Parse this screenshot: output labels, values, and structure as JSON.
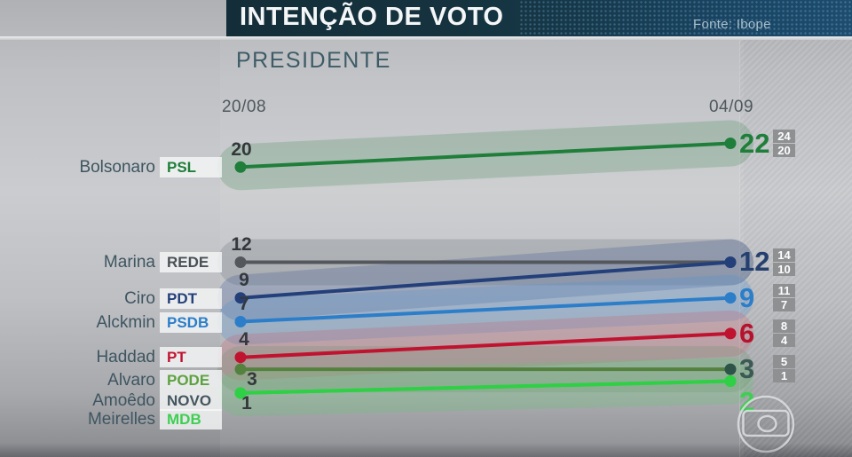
{
  "header": {
    "title": "INTENÇÃO DE VOTO",
    "source": "Fonte: Ibope"
  },
  "chart_data": {
    "type": "line",
    "variant": "slope",
    "title": "PRESIDENTE",
    "x": [
      "20/08",
      "04/09"
    ],
    "grid": false,
    "legend_position": "left-inline",
    "note": "shaded bands show margin of error; small gray badges show upper/lower bounds on 04/09",
    "series": [
      {
        "name": "Bolsonaro",
        "party": "PSL",
        "party_color": "#1f7e3a",
        "color": "#1f7e3a",
        "values": [
          20,
          22
        ],
        "moe_range": [
          20,
          24
        ],
        "band": "rgba(72,140,88,0.25)"
      },
      {
        "name": "Marina",
        "party": "REDE",
        "party_color": "#4b5055",
        "color": "#54585d",
        "values": [
          12,
          12
        ],
        "moe_range": [
          10,
          14
        ],
        "band": "rgba(105,110,116,0.25)"
      },
      {
        "name": "Ciro",
        "party": "PDT",
        "party_color": "#24407a",
        "color": "#24407a",
        "values": [
          9,
          12
        ],
        "moe_range": [
          10,
          14
        ],
        "band": "rgba(70,95,150,0.28)"
      },
      {
        "name": "Alckmin",
        "party": "PSDB",
        "party_color": "#2c7ec9",
        "color": "#2c7ec9",
        "values": [
          7,
          9
        ],
        "moe_range": [
          7,
          11
        ],
        "band": "rgba(90,145,205,0.30)"
      },
      {
        "name": "Haddad",
        "party": "PT",
        "party_color": "#c11431",
        "color": "#c01330",
        "values": [
          4,
          6
        ],
        "moe_range": [
          4,
          8
        ],
        "band": "rgba(205,90,105,0.25)"
      },
      {
        "name": "Alvaro",
        "party": "PODE",
        "party_color": "#5da23f",
        "color": "#55813f",
        "dot_right": "#2e5349",
        "values": [
          3,
          3
        ],
        "moe_range": [
          1,
          5
        ],
        "band": "rgba(120,145,115,0.28)"
      },
      {
        "name": "Amoêdo",
        "party": "NOVO",
        "party_color": "#44565e",
        "color": "#2fd045",
        "values": [
          1,
          2
        ],
        "band": "rgba(95,200,110,0.25)"
      },
      {
        "name": "Meirelles",
        "party": "MDB",
        "party_color": "#3ecf52",
        "color": "#2fd045",
        "values": [
          1,
          2
        ]
      }
    ],
    "left_labels": [
      {
        "text": "20"
      },
      {
        "text": "12"
      },
      {
        "text": "9"
      },
      {
        "text": "7"
      },
      {
        "text": "4"
      },
      {
        "text": "3"
      },
      {
        "text": "1"
      }
    ],
    "right_labels": [
      {
        "text": "22",
        "color": "#1f7e3a",
        "badges": [
          "24",
          "20"
        ]
      },
      {
        "text": "12",
        "color": "#25406e",
        "badges": [
          "14",
          "10"
        ]
      },
      {
        "text": "9",
        "color": "#2c7ec9",
        "badges": [
          "11",
          "7"
        ]
      },
      {
        "text": "6",
        "color": "#b5122e",
        "badges": [
          "8",
          "4"
        ]
      },
      {
        "text": "3",
        "color": "#3b5a54",
        "badges": [
          "5",
          "1"
        ]
      },
      {
        "text": "2",
        "color": "#3ecf52",
        "badges": []
      }
    ]
  },
  "watermark": {
    "icon": "globo-logo-icon"
  }
}
